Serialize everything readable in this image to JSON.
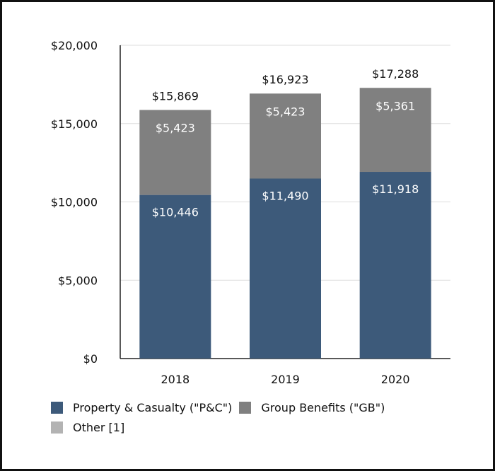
{
  "chart_data": {
    "type": "bar",
    "stacked": true,
    "categories": [
      "2018",
      "2019",
      "2020"
    ],
    "series": [
      {
        "name": "Property & Casualty (\"P&C\")",
        "color": "#3d5a7a",
        "values": [
          10446,
          11490,
          11918
        ],
        "labels": [
          "$10,446",
          "$11,490",
          "$11,918"
        ]
      },
      {
        "name": "Group Benefits (\"GB\")",
        "color": "#808080",
        "values": [
          5423,
          5423,
          5361
        ],
        "labels": [
          "$5,423",
          "$5,423",
          "$5,361"
        ]
      },
      {
        "name": "Other [1]",
        "color": "#b3b3b3",
        "values": [
          0,
          10,
          9
        ],
        "labels": [
          "",
          "",
          ""
        ]
      }
    ],
    "totals": [
      15869,
      16923,
      17288
    ],
    "total_labels": [
      "$15,869",
      "$16,923",
      "$17,288"
    ],
    "y_ticks": [
      0,
      5000,
      10000,
      15000,
      20000
    ],
    "y_tick_labels": [
      "$0",
      "$5,000",
      "$10,000",
      "$15,000",
      "$20,000"
    ],
    "ylim": [
      0,
      20000
    ],
    "grid": true,
    "legend_position": "bottom"
  },
  "legend": {
    "pc": "Property & Casualty (\"P&C\")",
    "gb": "Group Benefits (\"GB\")",
    "other": "Other [1]"
  }
}
